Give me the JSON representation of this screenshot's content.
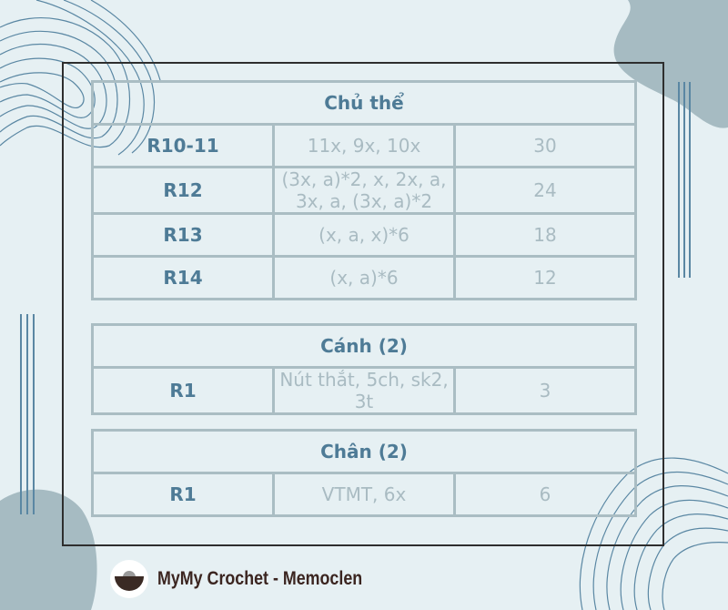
{
  "sections": [
    {
      "title": "Chủ thể",
      "rows": [
        {
          "round": "R10-11",
          "pattern": "11x, 9x, 10x",
          "count": "30"
        },
        {
          "round": "R12",
          "pattern": "(3x, a)*2, x, 2x, a, 3x, a, (3x, a)*2",
          "count": "24"
        },
        {
          "round": "R13",
          "pattern": "(x, a, x)*6",
          "count": "18"
        },
        {
          "round": "R14",
          "pattern": "(x, a)*6",
          "count": "12"
        }
      ]
    },
    {
      "title": "Cánh (2)",
      "rows": [
        {
          "round": "R1",
          "pattern": "Nút thắt, 5ch, sk2, 3t",
          "count": "3"
        }
      ]
    },
    {
      "title": "Chân (2)",
      "rows": [
        {
          "round": "R1",
          "pattern": "VTMT, 6x",
          "count": "6"
        }
      ]
    }
  ],
  "brand": {
    "name": "MyMy Crochet - Memoclen",
    "logo_text": "MYMY CROCHET"
  },
  "colors": {
    "background": "#e6f0f3",
    "border": "#aabdc3",
    "heading": "#4e7b96",
    "cell_text": "#a9bbc2",
    "blob": "#a6bbc2"
  }
}
